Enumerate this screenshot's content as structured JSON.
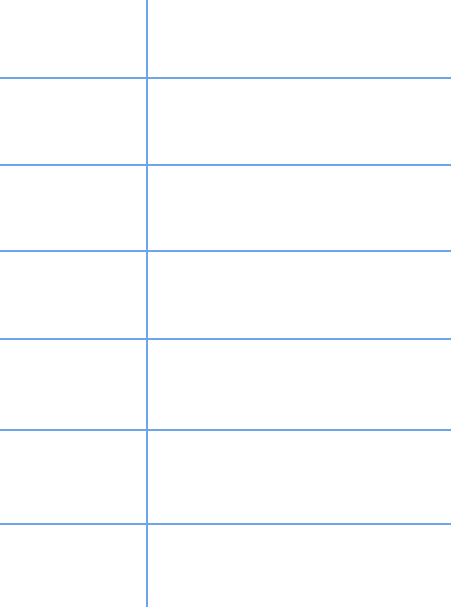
{
  "grid": {
    "line_color": "#6fa4ea",
    "background_color": "#ffffff",
    "rows": [
      {
        "label": "",
        "content": ""
      },
      {
        "label": "",
        "content": ""
      },
      {
        "label": "",
        "content": ""
      },
      {
        "label": "",
        "content": ""
      },
      {
        "label": "",
        "content": ""
      },
      {
        "label": "",
        "content": ""
      },
      {
        "label": "",
        "content": ""
      }
    ]
  }
}
